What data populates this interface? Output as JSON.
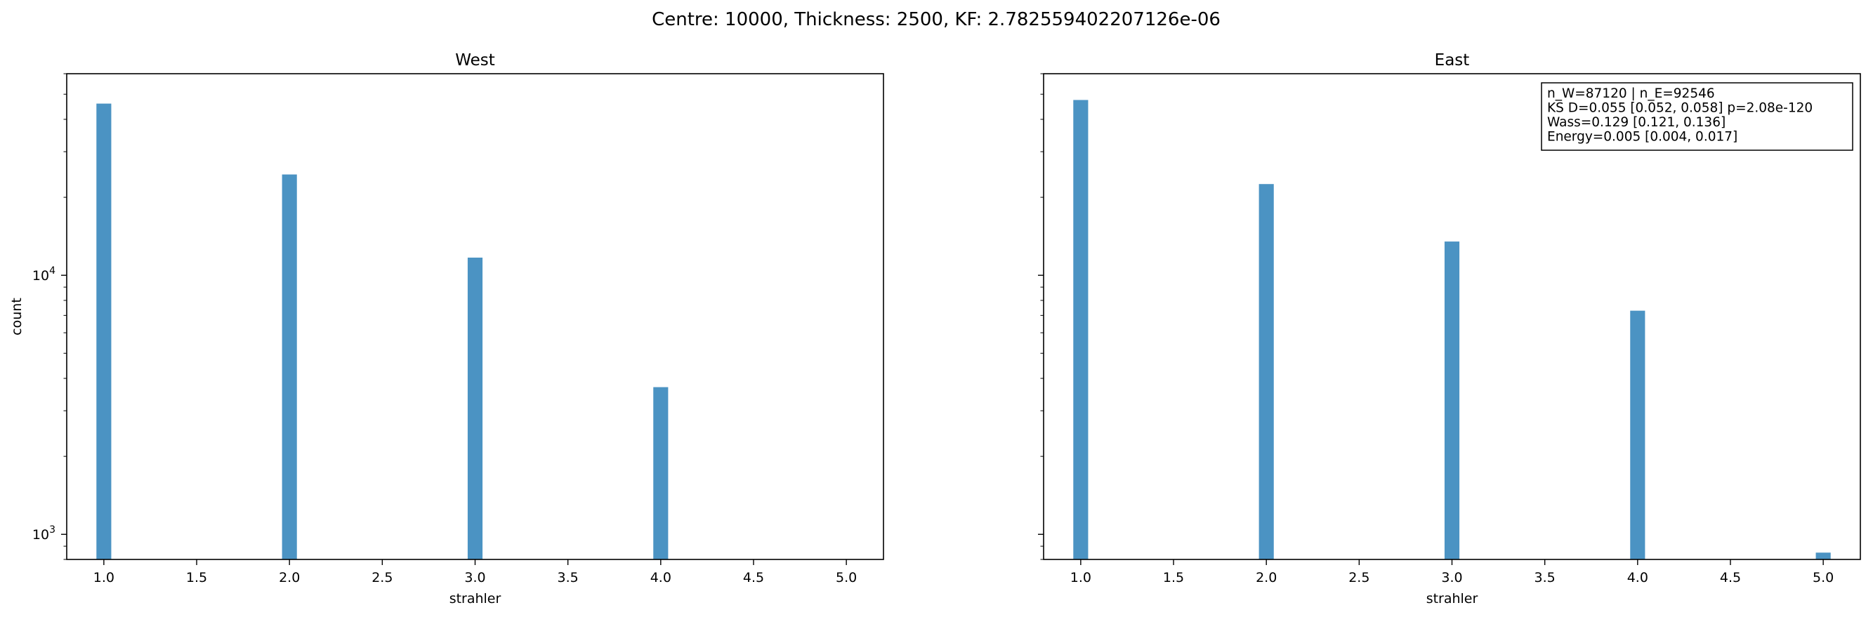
{
  "suptitle": "Centre: 10000, Thickness: 2500, KF: 2.782559402207126e-06",
  "chart_data": [
    {
      "type": "bar",
      "title": "West",
      "xlabel": "strahler",
      "ylabel": "count",
      "yscale": "log",
      "xlim": [
        0.8,
        5.2
      ],
      "ylim": [
        800,
        60000
      ],
      "xticks": [
        "1.0",
        "1.5",
        "2.0",
        "2.5",
        "3.0",
        "3.5",
        "4.0",
        "4.5",
        "5.0"
      ],
      "yticks": [
        {
          "value": 1000,
          "label": "10",
          "exp": "3"
        },
        {
          "value": 10000,
          "label": "10",
          "exp": "4"
        }
      ],
      "bar_color": "#4b93c3",
      "x": [
        1,
        2,
        3,
        4
      ],
      "values": [
        46000,
        24500,
        11700,
        3700
      ]
    },
    {
      "type": "bar",
      "title": "East",
      "xlabel": "strahler",
      "ylabel": "",
      "yscale": "log",
      "xlim": [
        0.8,
        5.2
      ],
      "ylim": [
        800,
        60000
      ],
      "xticks": [
        "1.0",
        "1.5",
        "2.0",
        "2.5",
        "3.0",
        "3.5",
        "4.0",
        "4.5",
        "5.0"
      ],
      "yticks": [],
      "bar_color": "#4b93c3",
      "x": [
        1,
        2,
        3,
        4,
        5
      ],
      "values": [
        47500,
        22500,
        13500,
        7300,
        850
      ],
      "annotation": [
        "n_W=87120 | n_E=92546",
        "KS D=0.055 [0.052, 0.058]  p=2.08e-120",
        "Wass=0.129 [0.121, 0.136]",
        "Energy=0.005 [0.004, 0.017]"
      ]
    }
  ]
}
